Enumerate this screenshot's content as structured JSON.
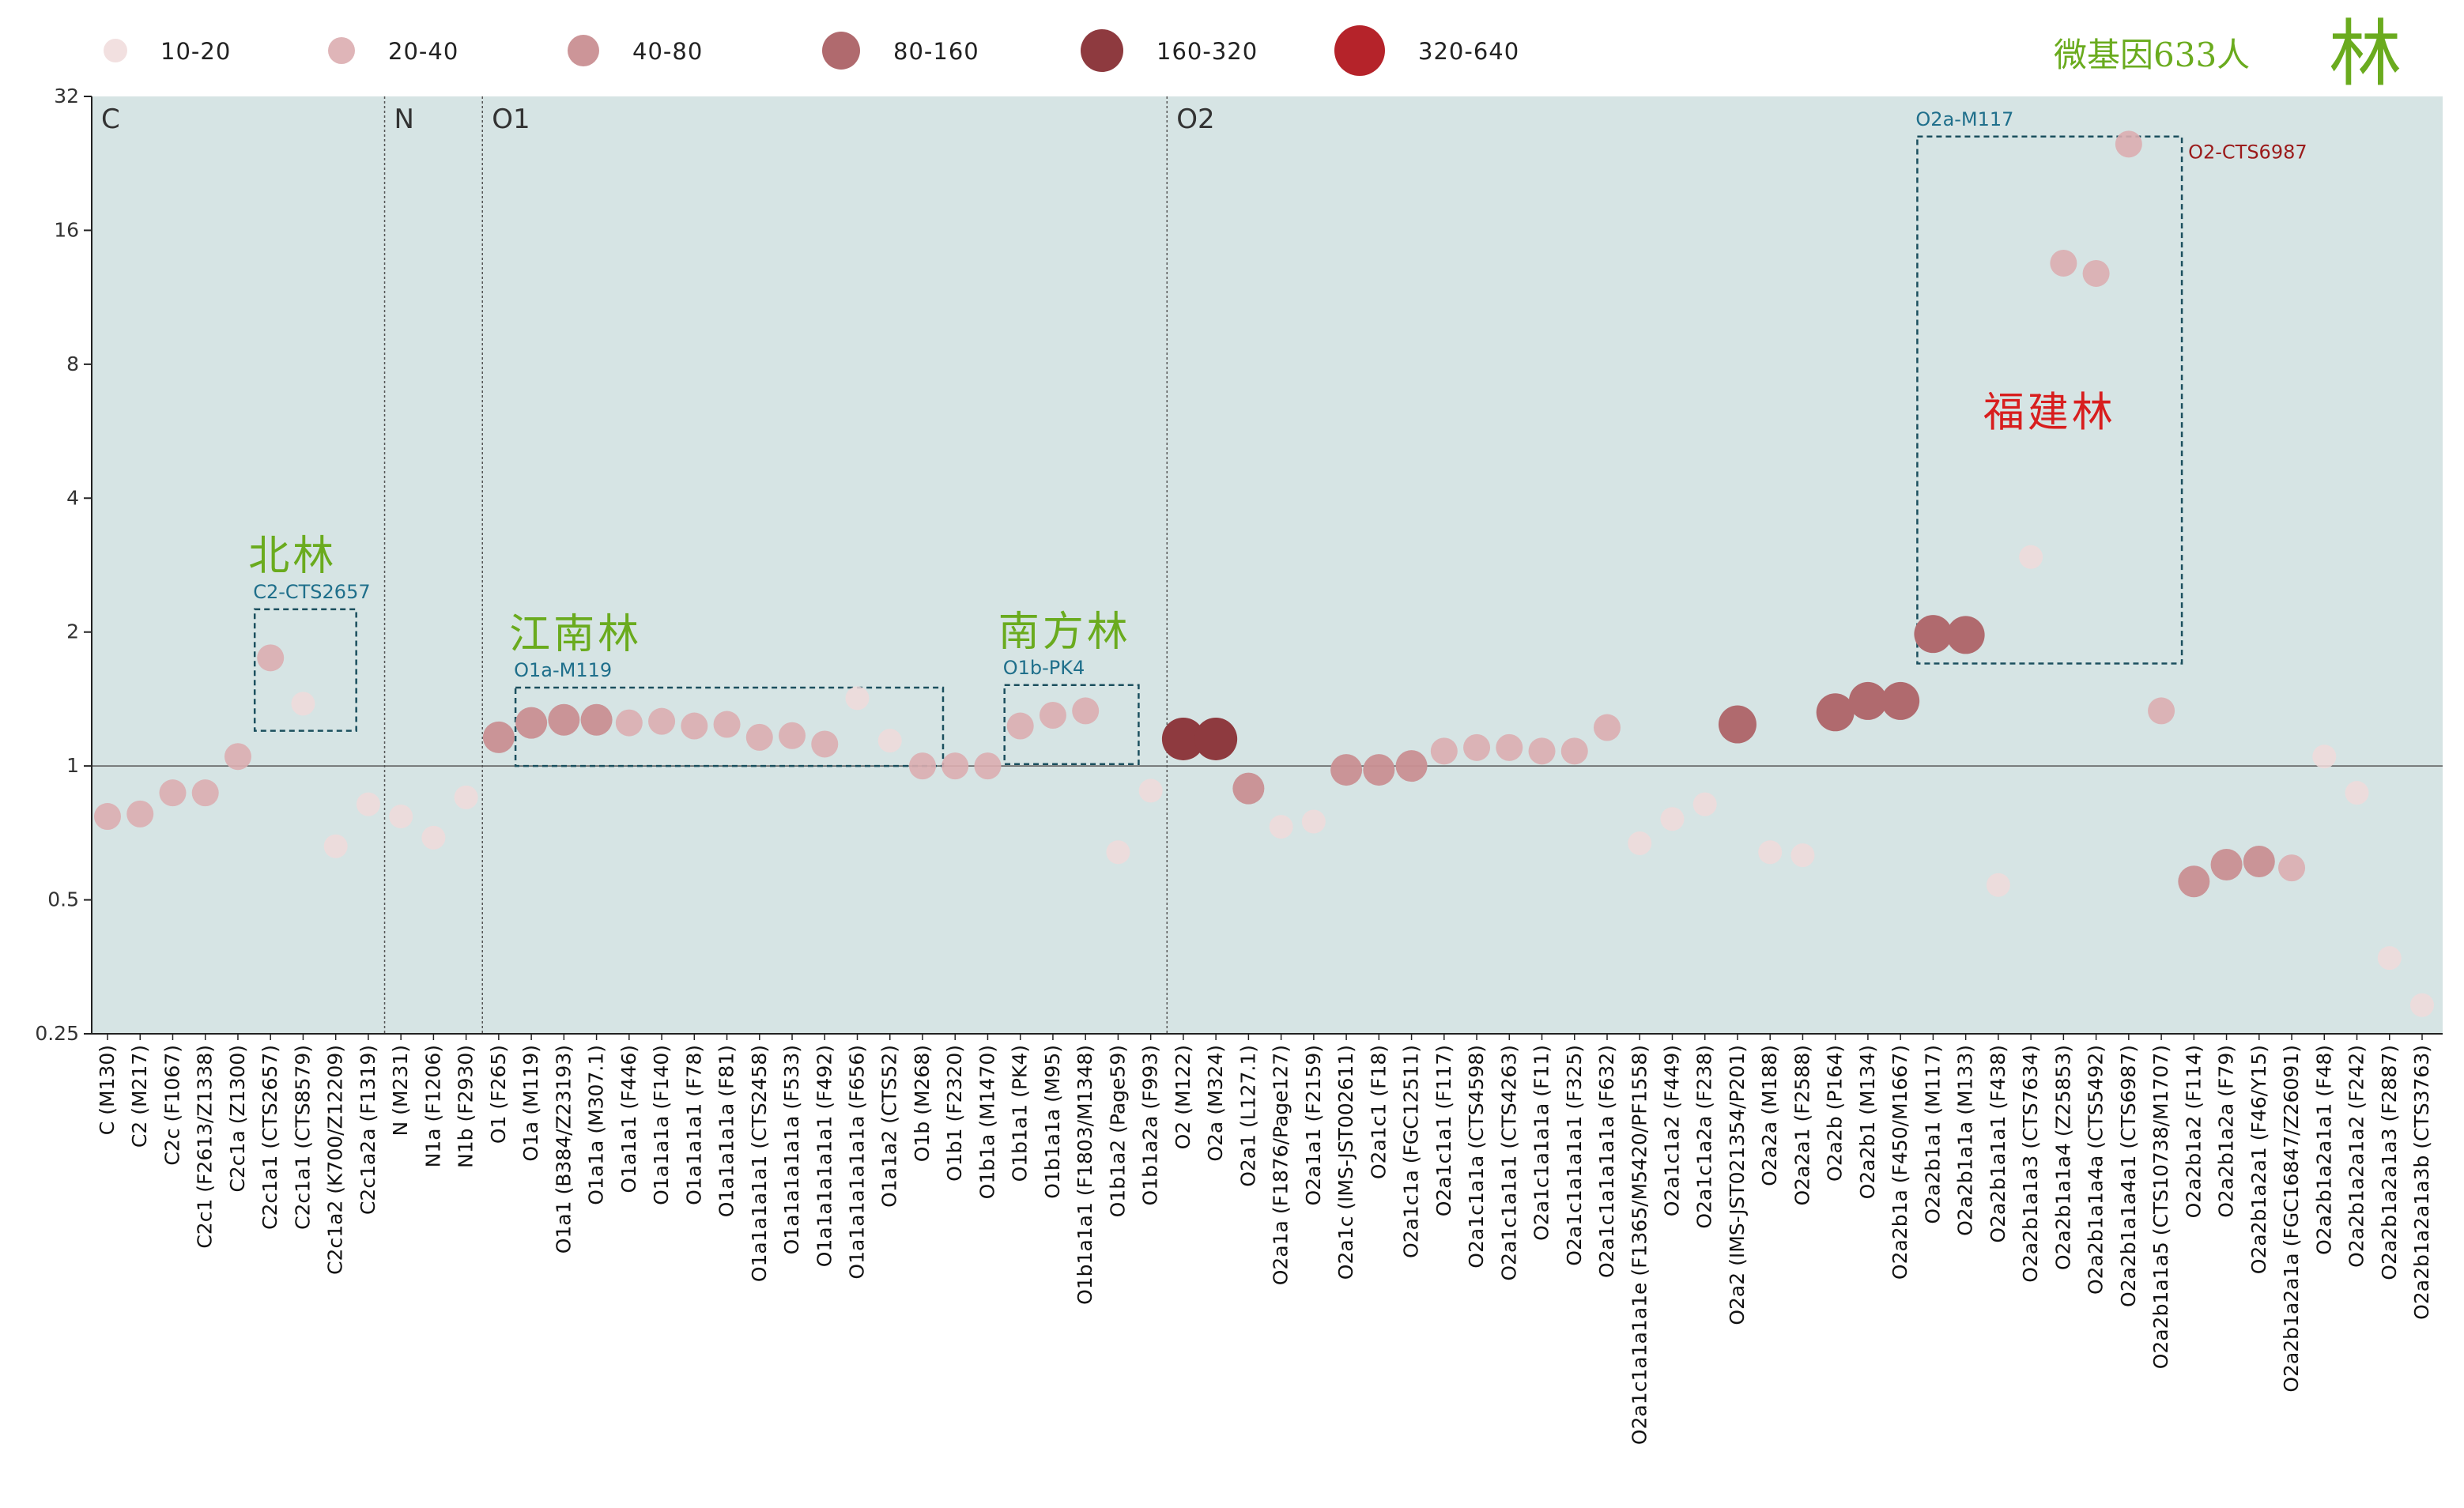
{
  "title": "微基因633人",
  "surname": "林",
  "legend": [
    {
      "label": "10-20",
      "color": "#f0dada",
      "opacity": 0.85
    },
    {
      "label": "20-40",
      "color": "#dcadb0",
      "opacity": 0.9
    },
    {
      "label": "40-80",
      "color": "#c98f92",
      "opacity": 0.95
    },
    {
      "label": "80-160",
      "color": "#b06a6e",
      "opacity": 1
    },
    {
      "label": "160-320",
      "color": "#8e3a3f",
      "opacity": 1
    },
    {
      "label": "320-640",
      "color": "#b5232a",
      "opacity": 1
    }
  ],
  "sections": [
    {
      "label": "C",
      "start_index": 0
    },
    {
      "label": "N",
      "start_index": 9
    },
    {
      "label": "O1",
      "start_index": 12
    },
    {
      "label": "O2",
      "start_index": 33
    }
  ],
  "groups": [
    {
      "haplo": "C2-CTS2657",
      "name": "北林",
      "name_color": "green",
      "from": 5,
      "to": 7,
      "y_low": 1.2,
      "y_high": 2.25
    },
    {
      "haplo": "O1a-M119",
      "name": "江南林",
      "name_color": "green",
      "from": 13,
      "to": 25,
      "y_low": 1.0,
      "y_high": 1.5
    },
    {
      "haplo": "O1b-PK4",
      "name": "南方林",
      "name_color": "green",
      "from": 28,
      "to": 31,
      "y_low": 1.01,
      "y_high": 1.52
    },
    {
      "haplo": "O2a-M117",
      "name": "福建林",
      "name_color": "red",
      "from": 56,
      "to": 63,
      "y_low": 1.7,
      "y_high": 26.0,
      "side_label": "O2-CTS6987"
    }
  ],
  "chart_data": {
    "type": "scatter",
    "title": "微基因633人",
    "xlabel": "",
    "ylabel": "",
    "y_scale": "log2",
    "ylim": [
      0.25,
      32
    ],
    "yticks": [
      0.25,
      0.5,
      1,
      2,
      4,
      8,
      16,
      32
    ],
    "ytick_labels": [
      "0.25",
      "0.5",
      "1",
      "2",
      "4",
      "8",
      "16",
      "32"
    ],
    "reference_line": 1,
    "categories": [
      "C (M130)",
      "C2 (M217)",
      "C2c (F1067)",
      "C2c1 (F2613/Z1338)",
      "C2c1a (Z1300)",
      "C2c1a1 (CTS2657)",
      "C2c1a1 (CTS8579)",
      "C2c1a2 (K700/Z12209)",
      "C2c1a2a (F1319)",
      "N (M231)",
      "N1a (F1206)",
      "N1b (F2930)",
      "O1 (F265)",
      "O1a (M119)",
      "O1a1 (B384/Z23193)",
      "O1a1a (M307.1)",
      "O1a1a1 (F446)",
      "O1a1a1a (F140)",
      "O1a1a1a1 (F78)",
      "O1a1a1a1a (F81)",
      "O1a1a1a1a1 (CTS2458)",
      "O1a1a1a1a1a (F533)",
      "O1a1a1a1a1a1 (F492)",
      "O1a1a1a1a1a1a (F656)",
      "O1a1a2 (CTS52)",
      "O1b (M268)",
      "O1b1 (F2320)",
      "O1b1a (M1470)",
      "O1b1a1 (PK4)",
      "O1b1a1a (M95)",
      "O1b1a1a1 (F1803/M1348)",
      "O1b1a2 (Page59)",
      "O1b1a2a (F993)",
      "O2 (M122)",
      "O2a (M324)",
      "O2a1 (L127.1)",
      "O2a1a (F1876/Page127)",
      "O2a1a1 (F2159)",
      "O2a1c (IMS-JST002611)",
      "O2a1c1 (F18)",
      "O2a1c1a (FGC12511)",
      "O2a1c1a1 (F117)",
      "O2a1c1a1a (CTS4598)",
      "O2a1c1a1a1 (CTS4263)",
      "O2a1c1a1a1a (F11)",
      "O2a1c1a1a1a1 (F325)",
      "O2a1c1a1a1a1a (F632)",
      "O2a1c1a1a1a1e (F1365/M5420/PF1558)",
      "O2a1c1a2 (F449)",
      "O2a1c1a2a (F238)",
      "O2a2 (IMS-JST021354/P201)",
      "O2a2a (M188)",
      "O2a2a1 (F2588)",
      "O2a2b (P164)",
      "O2a2b1 (M134)",
      "O2a2b1a (F450/M1667)",
      "O2a2b1a1 (M117)",
      "O2a2b1a1a (M133)",
      "O2a2b1a1a1 (F438)",
      "O2a2b1a1a3 (CTS7634)",
      "O2a2b1a1a4 (Z25853)",
      "O2a2b1a1a4a (CTS5492)",
      "O2a2b1a1a4a1 (CTS6987)",
      "O2a2b1a1a5 (CTS10738/M1707)",
      "O2a2b1a2 (F114)",
      "O2a2b1a2a (F79)",
      "O2a2b1a2a1 (F46/Y15)",
      "O2a2b1a2a1a (FGC16847/Z26091)",
      "O2a2b1a2a1a1 (F48)",
      "O2a2b1a2a1a2 (F242)",
      "O2a2b1a2a1a3 (F2887)",
      "O2a2b1a2a1a3b (CTS3763)"
    ],
    "values": [
      0.77,
      0.78,
      0.87,
      0.87,
      1.05,
      1.75,
      1.38,
      0.66,
      0.82,
      0.77,
      0.69,
      0.85,
      1.16,
      1.25,
      1.27,
      1.27,
      1.25,
      1.26,
      1.23,
      1.24,
      1.16,
      1.17,
      1.12,
      1.42,
      1.14,
      1.0,
      1.0,
      1.0,
      1.23,
      1.3,
      1.33,
      0.64,
      0.88,
      1.15,
      1.15,
      0.89,
      0.73,
      0.75,
      0.98,
      0.98,
      1.0,
      1.08,
      1.1,
      1.1,
      1.08,
      1.08,
      1.22,
      0.67,
      0.76,
      0.82,
      1.24,
      0.64,
      0.63,
      1.32,
      1.4,
      1.4,
      1.98,
      1.97,
      0.54,
      2.95,
      13.5,
      12.8,
      25.0,
      1.33,
      0.55,
      0.6,
      0.61,
      0.59,
      1.05,
      0.87,
      0.37,
      0.29
    ],
    "size_class": [
      2,
      2,
      2,
      2,
      2,
      2,
      1,
      1,
      1,
      1,
      1,
      1,
      3,
      3,
      3,
      3,
      2,
      2,
      2,
      2,
      2,
      2,
      2,
      1,
      1,
      2,
      2,
      2,
      2,
      2,
      2,
      1,
      1,
      5,
      5,
      3,
      1,
      1,
      3,
      3,
      3,
      2,
      2,
      2,
      2,
      2,
      2,
      1,
      1,
      1,
      4,
      1,
      1,
      4,
      4,
      4,
      4,
      4,
      1,
      1,
      2,
      2,
      2,
      2,
      3,
      3,
      3,
      2,
      1,
      1,
      1,
      1
    ]
  }
}
